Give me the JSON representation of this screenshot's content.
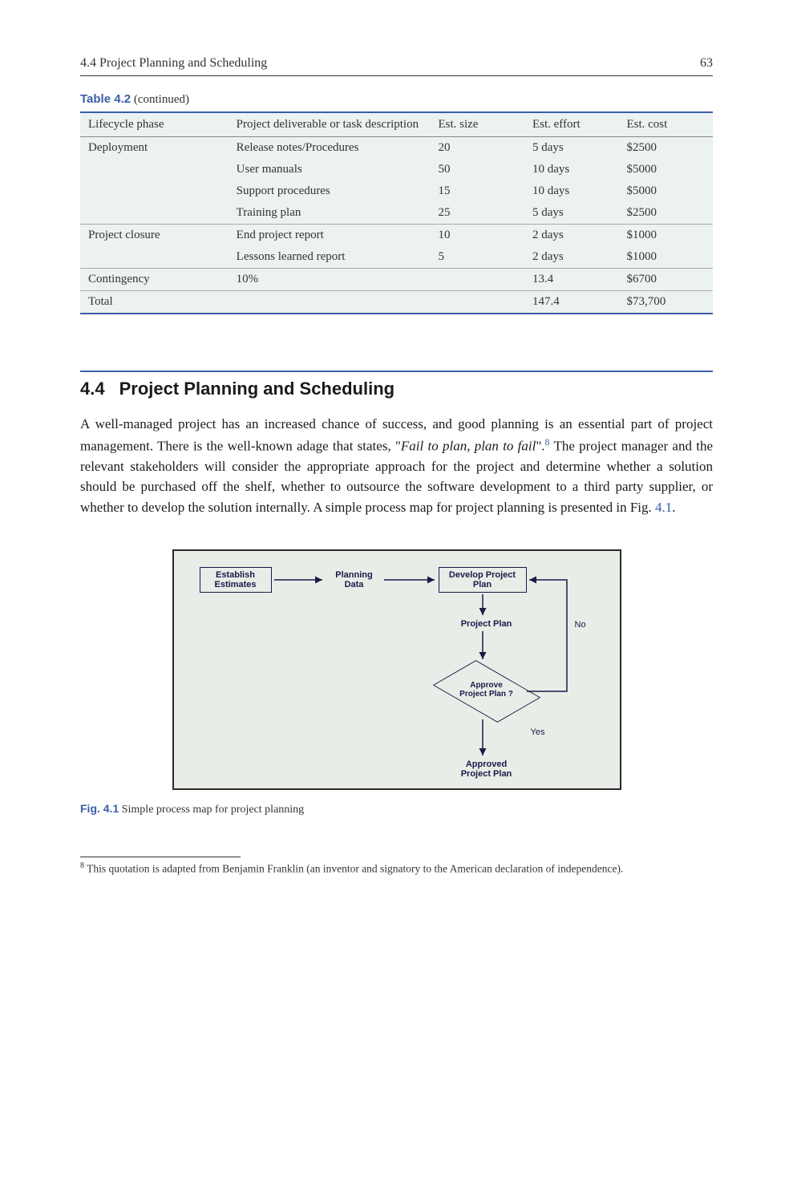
{
  "header": {
    "section_label": "4.4   Project Planning and Scheduling",
    "page_number": "63"
  },
  "table": {
    "caption_number": "Table 4.2",
    "caption_continued": "(continued)",
    "columns": {
      "phase": "Lifecycle phase",
      "desc": "Project deliverable or task description",
      "size": "Est. size",
      "effort": "Est. effort",
      "cost": "Est. cost"
    },
    "rows": [
      {
        "phase": "Deployment",
        "desc": "Release notes/Procedures",
        "size": "20",
        "effort": "5 days",
        "cost": "$2500"
      },
      {
        "phase": "",
        "desc": "User manuals",
        "size": "50",
        "effort": "10 days",
        "cost": "$5000"
      },
      {
        "phase": "",
        "desc": "Support procedures",
        "size": "15",
        "effort": "10 days",
        "cost": "$5000"
      },
      {
        "phase": "",
        "desc": "Training plan",
        "size": "25",
        "effort": "5 days",
        "cost": "$2500"
      },
      {
        "phase": "Project closure",
        "desc": "End project report",
        "size": "10",
        "effort": "2 days",
        "cost": "$1000"
      },
      {
        "phase": "",
        "desc": "Lessons learned report",
        "size": "5",
        "effort": "2 days",
        "cost": "$1000"
      },
      {
        "phase": "Contingency",
        "desc": "10%",
        "size": "",
        "effort": "13.4",
        "cost": "$6700"
      },
      {
        "phase": "Total",
        "desc": "",
        "size": "",
        "effort": "147.4",
        "cost": "$73,700"
      }
    ]
  },
  "section": {
    "number": "4.4",
    "title": "Project Planning and Scheduling"
  },
  "paragraph": {
    "pre": "A well-managed project has an increased chance of success, and good planning is an essential part of project management. There is the well-known adage that states, \"",
    "quote": "Fail to plan, plan to fail",
    "post1": "\".",
    "footnote_ref": "8",
    "post2": " The project manager and the relevant stakeholders will consider the appropriate approach for the project and determine whether a solution should be purchased off the shelf, whether to outsource the software development to a third party supplier, or whether to develop the solution internally. A simple process map for project planning is presented in Fig. ",
    "figref": "4.1",
    "post3": "."
  },
  "figure": {
    "nodes": {
      "establish": "Establish\nEstimates",
      "planning": "Planning\nData",
      "develop": "Develop Project\nPlan",
      "projectplan": "Project Plan",
      "decision": "Approve\nProject Plan ?",
      "approved": "Approved\nProject Plan"
    },
    "labels": {
      "no": "No",
      "yes": "Yes"
    },
    "caption_number": "Fig. 4.1",
    "caption_text": "Simple process map for project planning"
  },
  "footnote": {
    "marker": "8",
    "text": " This quotation is adapted from Benjamin Franklin (an inventor and signatory to the American declaration of independence)."
  },
  "colors": {
    "accent": "#3a5ea8",
    "table_bg": "#ecf2f0",
    "figure_bg": "#e9ede7",
    "figure_stroke": "#1a1a4a"
  }
}
